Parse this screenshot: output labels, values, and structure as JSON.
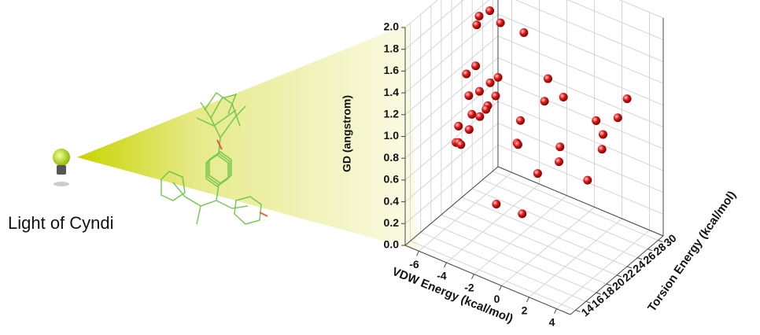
{
  "annotation": "Light of Cyndi",
  "chart_data": {
    "type": "scatter3d",
    "xlabel": "VDW Energy (kcal/mol)",
    "ylabel": "Torsion Energy (kcal/mol)",
    "zlabel": "GD (angstrom)",
    "xlim": [
      -7,
      5
    ],
    "ylim": [
      13,
      31
    ],
    "zlim": [
      0,
      2
    ],
    "xticks": [
      -6,
      -4,
      -2,
      0,
      2,
      4
    ],
    "yticks": [
      14,
      16,
      18,
      20,
      22,
      24,
      26,
      28,
      30
    ],
    "zticks": [
      {
        "value": 0,
        "label": "0.0"
      },
      {
        "value": 0.2,
        "label": "0.2"
      },
      {
        "value": 0.4,
        "label": "0.4"
      },
      {
        "value": 0.6,
        "label": "0.6"
      },
      {
        "value": 0.8,
        "label": "0.8"
      },
      {
        "value": 1,
        "label": "1.0"
      },
      {
        "value": 1.2,
        "label": "1.2"
      },
      {
        "value": 1.4,
        "label": "1.4"
      },
      {
        "value": 1.6,
        "label": "1.6"
      },
      {
        "value": 1.8,
        "label": "1.8"
      },
      {
        "value": 2,
        "label": "2.0"
      }
    ],
    "grid": true,
    "color": "#e01818",
    "x": [
      -5,
      -4.6,
      -4.8,
      -4.2,
      -4.5,
      -4.8,
      -5,
      -4.6,
      -4.2,
      -4,
      -4.4,
      -5,
      -4.6,
      -4.2,
      -4.8,
      -5,
      -4,
      -3.8,
      -4.5,
      -5.2,
      -2.5,
      -1.5,
      -1,
      0,
      -2,
      -1.5,
      -1.8,
      0.5,
      0.8,
      0,
      2,
      2.5,
      2.8,
      3.2,
      2.5,
      3.5,
      -1.5,
      0
    ],
    "y": [
      22,
      23,
      21,
      24,
      20,
      19,
      20,
      21,
      22,
      23,
      19,
      18,
      19,
      20,
      17,
      18,
      21,
      22,
      22,
      19,
      24,
      26,
      24,
      25,
      22,
      20,
      21,
      23,
      22,
      20,
      26,
      26,
      25,
      27,
      23,
      28,
      16,
      17
    ],
    "z": [
      1.85,
      1.88,
      1.82,
      1.75,
      1.5,
      1.45,
      1.2,
      1.22,
      1.28,
      1.3,
      1.1,
      1.0,
      0.95,
      1.05,
      0.9,
      0.85,
      1.12,
      1.18,
      1.02,
      0.78,
      1.75,
      1.3,
      1.2,
      1.25,
      1.05,
      0.95,
      0.88,
      0.9,
      0.82,
      0.75,
      1.1,
      1.0,
      0.92,
      1.15,
      0.7,
      1.3,
      0.55,
      0.5
    ]
  }
}
